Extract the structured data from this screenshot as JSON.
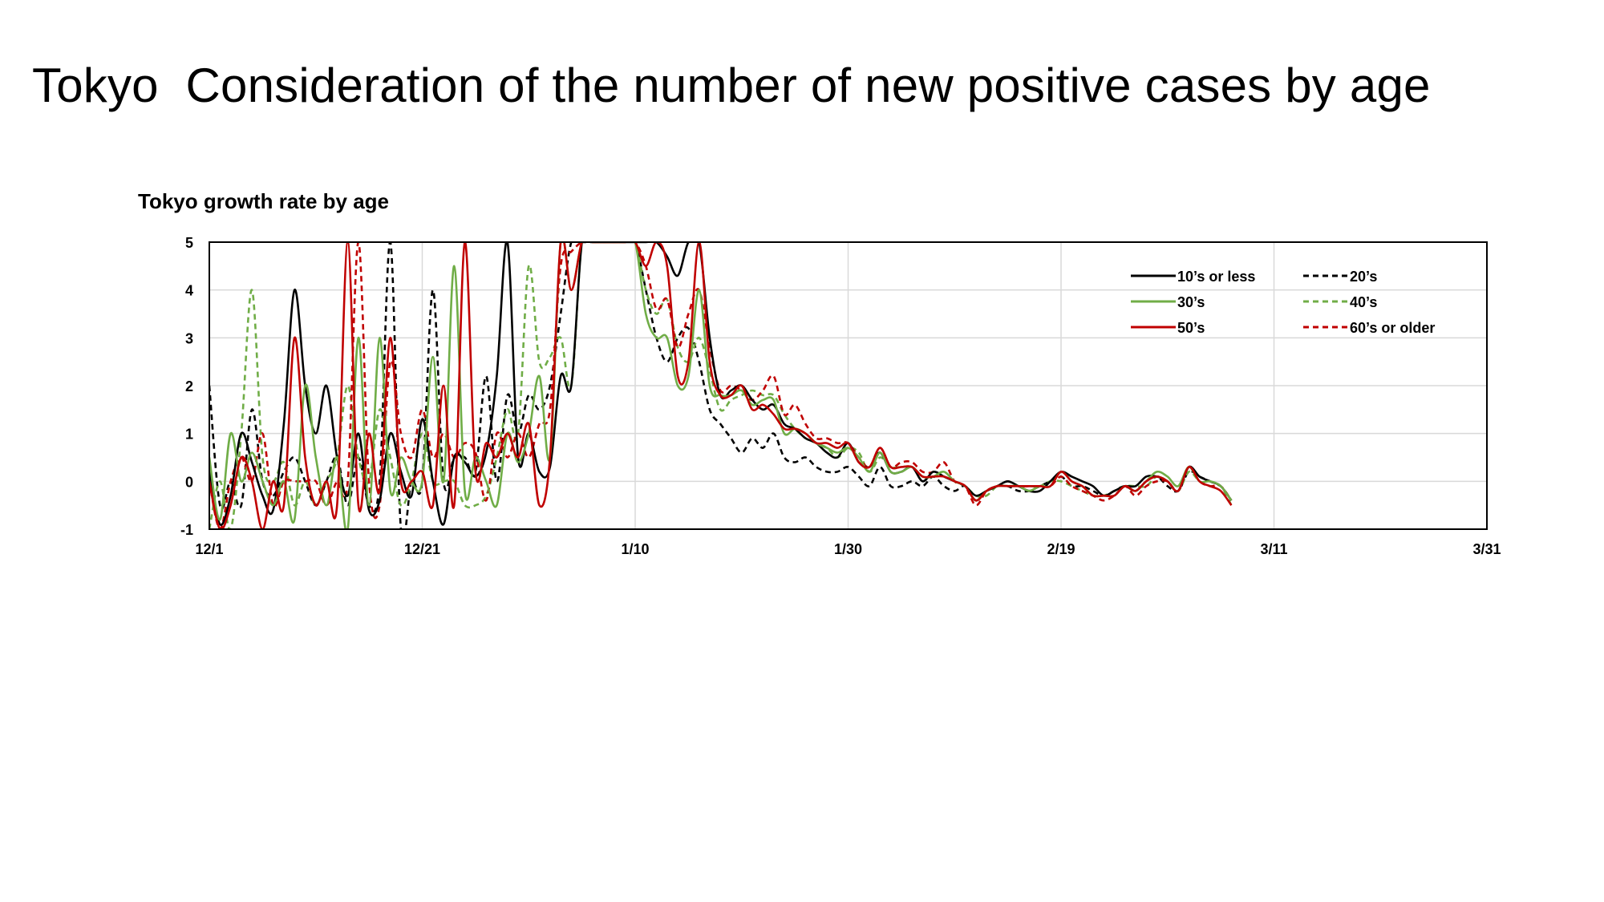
{
  "slide": {
    "title": "Tokyo  Consideration of the number of new positive cases by age"
  },
  "chart_data": {
    "type": "line",
    "title": "Tokyo growth rate by age",
    "xlabel": "",
    "ylabel": "",
    "ylim": [
      -1,
      5
    ],
    "yticks": [
      5,
      4,
      3,
      2,
      1,
      0,
      -1
    ],
    "xlim_days": [
      0,
      120
    ],
    "xticks": [
      {
        "day": 0,
        "label": "12/1"
      },
      {
        "day": 20,
        "label": "12/21"
      },
      {
        "day": 40,
        "label": "1/10"
      },
      {
        "day": 60,
        "label": "1/30"
      },
      {
        "day": 80,
        "label": "2/19"
      },
      {
        "day": 100,
        "label": "3/11"
      },
      {
        "day": 120,
        "label": "3/31"
      }
    ],
    "grid": true,
    "legend_position": "top-right",
    "series": [
      {
        "name": "10’s or less",
        "color": "#000000",
        "dash": "solid",
        "x": [
          0,
          1,
          2,
          3,
          4,
          5,
          6,
          7,
          8,
          9,
          10,
          11,
          12,
          13,
          14,
          15,
          16,
          17,
          18,
          19,
          20,
          21,
          22,
          23,
          24,
          25,
          26,
          27,
          28,
          29,
          30,
          31,
          32,
          33,
          34,
          35,
          36,
          37,
          38,
          39,
          40,
          41,
          42,
          43,
          44,
          45,
          46,
          47,
          48,
          49,
          50,
          51,
          52,
          53,
          54,
          55,
          56,
          57,
          58,
          59,
          60,
          61,
          62,
          63,
          64,
          65,
          66,
          67,
          68,
          69,
          70,
          71,
          72,
          73,
          74,
          75,
          76,
          77,
          78,
          79,
          80,
          81,
          82,
          83,
          84,
          85,
          86,
          87,
          88,
          89,
          90,
          91,
          92,
          93,
          94,
          95,
          96
        ],
        "y": [
          0.2,
          -0.9,
          -0.3,
          1.0,
          0.4,
          -0.3,
          -0.6,
          1.2,
          4.0,
          2.0,
          1.0,
          2.0,
          0.5,
          -0.3,
          1.0,
          -0.6,
          -0.4,
          1.0,
          0.2,
          -0.3,
          1.3,
          0.0,
          -0.9,
          0.5,
          0.4,
          0.1,
          0.6,
          2.2,
          5.0,
          0.5,
          1.0,
          0.2,
          0.3,
          2.2,
          2.0,
          5.0,
          5.0,
          5.0,
          5.0,
          5.0,
          5.0,
          5.0,
          5.0,
          4.7,
          4.3,
          5.0,
          5.0,
          3.0,
          1.8,
          1.9,
          2.0,
          1.7,
          1.5,
          1.6,
          1.2,
          1.1,
          0.9,
          0.8,
          0.6,
          0.5,
          0.8,
          0.4,
          0.3,
          0.6,
          0.2,
          0.2,
          0.3,
          0.0,
          0.2,
          0.1,
          0.0,
          -0.1,
          -0.3,
          -0.2,
          -0.1,
          0.0,
          -0.1,
          -0.2,
          -0.2,
          0.0,
          0.2,
          0.1,
          0.0,
          -0.1,
          -0.3,
          -0.2,
          -0.1,
          -0.1,
          0.1,
          0.1,
          0.0,
          -0.2,
          0.3,
          0.1,
          0.0,
          -0.1,
          -0.4
        ]
      },
      {
        "name": "20’s",
        "color": "#000000",
        "dash": "dashed",
        "x": [
          0,
          1,
          2,
          3,
          4,
          5,
          6,
          7,
          8,
          9,
          10,
          11,
          12,
          13,
          14,
          15,
          16,
          17,
          18,
          19,
          20,
          21,
          22,
          23,
          24,
          25,
          26,
          27,
          28,
          29,
          30,
          31,
          32,
          33,
          34,
          35,
          36,
          37,
          38,
          39,
          40,
          41,
          42,
          43,
          44,
          45,
          46,
          47,
          48,
          49,
          50,
          51,
          52,
          53,
          54,
          55,
          56,
          57,
          58,
          59,
          60,
          61,
          62,
          63,
          64,
          65,
          66,
          67,
          68,
          69,
          70,
          71,
          72,
          73,
          74,
          75,
          76,
          77,
          78,
          79,
          80,
          81,
          82,
          83,
          84,
          85,
          86,
          87,
          88,
          89,
          90,
          91,
          92,
          93,
          94,
          95,
          96
        ],
        "y": [
          2.0,
          -0.5,
          0.0,
          -0.5,
          1.5,
          0.0,
          -0.3,
          0.2,
          0.5,
          0.0,
          -0.5,
          0.0,
          0.5,
          -0.5,
          0.5,
          -0.5,
          0.0,
          5.0,
          -1.0,
          0.0,
          0.0,
          4.0,
          0.0,
          0.5,
          0.5,
          0.2,
          2.2,
          0.0,
          1.8,
          1.0,
          1.8,
          1.5,
          2.0,
          3.5,
          5.0,
          5.0,
          5.0,
          5.0,
          5.0,
          5.0,
          5.0,
          4.0,
          3.0,
          2.5,
          3.0,
          3.2,
          2.5,
          1.5,
          1.2,
          0.9,
          0.6,
          0.9,
          0.7,
          1.0,
          0.5,
          0.4,
          0.5,
          0.3,
          0.2,
          0.2,
          0.3,
          0.1,
          -0.1,
          0.3,
          -0.1,
          -0.1,
          0.0,
          -0.1,
          0.1,
          -0.1,
          -0.2,
          -0.1,
          -0.4,
          -0.2,
          -0.1,
          -0.1,
          -0.2,
          -0.2,
          -0.1,
          0.0,
          0.1,
          -0.1,
          -0.1,
          -0.2,
          -0.3,
          -0.2,
          -0.1,
          -0.2,
          0.0,
          0.1,
          -0.1,
          -0.2,
          0.2,
          0.1,
          0.0,
          -0.1,
          -0.4
        ]
      },
      {
        "name": "30’s",
        "color": "#70ad47",
        "dash": "solid",
        "x": [
          0,
          1,
          2,
          3,
          4,
          5,
          6,
          7,
          8,
          9,
          10,
          11,
          12,
          13,
          14,
          15,
          16,
          17,
          18,
          19,
          20,
          21,
          22,
          23,
          24,
          25,
          26,
          27,
          28,
          29,
          30,
          31,
          32,
          33,
          34,
          35,
          36,
          37,
          38,
          39,
          40,
          41,
          42,
          43,
          44,
          45,
          46,
          47,
          48,
          49,
          50,
          51,
          52,
          53,
          54,
          55,
          56,
          57,
          58,
          59,
          60,
          61,
          62,
          63,
          64,
          65,
          66,
          67,
          68,
          69,
          70,
          71,
          72,
          73,
          74,
          75,
          76,
          77,
          78,
          79,
          80,
          81,
          82,
          83,
          84,
          85,
          86,
          87,
          88,
          89,
          90,
          91,
          92,
          93,
          94,
          95,
          96
        ],
        "y": [
          0.5,
          -0.8,
          1.0,
          0.0,
          0.6,
          0.0,
          -0.5,
          0.0,
          -0.8,
          2.0,
          0.5,
          -0.5,
          0.5,
          -1.0,
          3.0,
          -0.5,
          3.0,
          -0.2,
          0.5,
          0.0,
          0.0,
          2.6,
          0.0,
          4.5,
          -0.2,
          0.5,
          0.0,
          -0.5,
          1.0,
          0.4,
          1.0,
          2.2,
          0.5,
          5.0,
          4.0,
          5.0,
          5.0,
          5.0,
          5.0,
          5.0,
          5.0,
          3.5,
          3.0,
          3.0,
          2.0,
          2.2,
          4.0,
          2.0,
          1.8,
          1.8,
          1.9,
          1.6,
          1.7,
          1.7,
          1.0,
          1.1,
          1.0,
          0.8,
          0.7,
          0.6,
          0.7,
          0.5,
          0.2,
          0.6,
          0.2,
          0.2,
          0.3,
          0.1,
          0.1,
          0.2,
          0.0,
          -0.1,
          -0.4,
          -0.2,
          -0.1,
          -0.1,
          -0.1,
          -0.2,
          -0.1,
          -0.1,
          0.2,
          0.0,
          -0.1,
          -0.3,
          -0.3,
          -0.3,
          -0.1,
          -0.2,
          0.0,
          0.2,
          0.1,
          -0.1,
          0.3,
          0.0,
          0.0,
          -0.1,
          -0.4
        ]
      },
      {
        "name": "40’s",
        "color": "#70ad47",
        "dash": "dashed",
        "x": [
          0,
          1,
          2,
          3,
          4,
          5,
          6,
          7,
          8,
          9,
          10,
          11,
          12,
          13,
          14,
          15,
          16,
          17,
          18,
          19,
          20,
          21,
          22,
          23,
          24,
          25,
          26,
          27,
          28,
          29,
          30,
          31,
          32,
          33,
          34,
          35,
          36,
          37,
          38,
          39,
          40,
          41,
          42,
          43,
          44,
          45,
          46,
          47,
          48,
          49,
          50,
          51,
          52,
          53,
          54,
          55,
          56,
          57,
          58,
          59,
          60,
          61,
          62,
          63,
          64,
          65,
          66,
          67,
          68,
          69,
          70,
          71,
          72,
          73,
          74,
          75,
          76,
          77,
          78,
          79,
          80,
          81,
          82,
          83,
          84,
          85,
          86,
          87,
          88,
          89,
          90,
          91,
          92,
          93,
          94,
          95,
          96
        ],
        "y": [
          -1.0,
          0.0,
          -1.0,
          1.0,
          4.0,
          0.5,
          0.0,
          0.4,
          -0.5,
          0.0,
          -0.5,
          0.0,
          0.5,
          2.0,
          0.5,
          0.0,
          1.5,
          0.5,
          -0.5,
          0.0,
          1.0,
          0.0,
          0.0,
          0.0,
          -0.5,
          -0.5,
          -0.3,
          0.5,
          1.5,
          1.0,
          4.5,
          2.5,
          2.6,
          3.0,
          2.0,
          5.0,
          5.0,
          5.0,
          5.0,
          5.0,
          5.0,
          4.0,
          3.5,
          3.8,
          2.8,
          2.5,
          3.0,
          2.3,
          1.5,
          1.7,
          1.8,
          1.9,
          1.8,
          1.8,
          1.4,
          1.1,
          0.9,
          0.8,
          0.7,
          0.5,
          0.7,
          0.6,
          0.2,
          0.5,
          0.3,
          0.3,
          0.3,
          0.1,
          0.1,
          0.2,
          0.0,
          -0.1,
          -0.3,
          -0.3,
          -0.1,
          -0.1,
          -0.1,
          -0.1,
          -0.1,
          0.0,
          0.0,
          -0.1,
          -0.2,
          -0.3,
          -0.3,
          -0.2,
          -0.1,
          -0.1,
          -0.1,
          0.1,
          0.0,
          -0.2,
          0.2,
          0.0,
          -0.1,
          -0.1,
          -0.5
        ]
      },
      {
        "name": "50’s",
        "color": "#c00000",
        "dash": "solid",
        "x": [
          0,
          1,
          2,
          3,
          4,
          5,
          6,
          7,
          8,
          9,
          10,
          11,
          12,
          13,
          14,
          15,
          16,
          17,
          18,
          19,
          20,
          21,
          22,
          23,
          24,
          25,
          26,
          27,
          28,
          29,
          30,
          31,
          32,
          33,
          34,
          35,
          36,
          37,
          38,
          39,
          40,
          41,
          42,
          43,
          44,
          45,
          46,
          47,
          48,
          49,
          50,
          51,
          52,
          53,
          54,
          55,
          56,
          57,
          58,
          59,
          60,
          61,
          62,
          63,
          64,
          65,
          66,
          67,
          68,
          69,
          70,
          71,
          72,
          73,
          74,
          75,
          76,
          77,
          78,
          79,
          80,
          81,
          82,
          83,
          84,
          85,
          86,
          87,
          88,
          89,
          90,
          91,
          92,
          93,
          94,
          95,
          96
        ],
        "y": [
          0.0,
          -1.0,
          -0.5,
          0.5,
          0.0,
          -1.0,
          0.0,
          -0.5,
          3.0,
          0.5,
          -0.5,
          0.0,
          -0.5,
          5.0,
          -0.5,
          1.0,
          -0.2,
          3.0,
          0.0,
          0.0,
          0.2,
          -0.5,
          2.0,
          -0.5,
          5.0,
          0.2,
          0.8,
          0.5,
          1.0,
          0.5,
          1.2,
          -0.5,
          0.5,
          5.0,
          4.0,
          5.0,
          5.0,
          5.0,
          5.0,
          5.0,
          5.0,
          4.5,
          5.0,
          4.5,
          2.2,
          2.5,
          5.0,
          2.5,
          1.8,
          1.8,
          2.0,
          1.5,
          1.6,
          1.4,
          1.1,
          1.1,
          1.0,
          0.8,
          0.8,
          0.7,
          0.8,
          0.4,
          0.3,
          0.7,
          0.3,
          0.3,
          0.3,
          0.1,
          0.1,
          0.1,
          0.0,
          -0.1,
          -0.4,
          -0.2,
          -0.1,
          -0.1,
          -0.1,
          -0.1,
          -0.1,
          -0.1,
          0.2,
          0.0,
          -0.1,
          -0.3,
          -0.3,
          -0.3,
          -0.1,
          -0.2,
          0.0,
          0.1,
          0.0,
          -0.2,
          0.3,
          0.0,
          -0.1,
          -0.2,
          -0.5
        ]
      },
      {
        "name": "60’s or older",
        "color": "#c00000",
        "dash": "dashed",
        "x": [
          0,
          1,
          2,
          3,
          4,
          5,
          6,
          7,
          8,
          9,
          10,
          11,
          12,
          13,
          14,
          15,
          16,
          17,
          18,
          19,
          20,
          21,
          22,
          23,
          24,
          25,
          26,
          27,
          28,
          29,
          30,
          31,
          32,
          33,
          34,
          35,
          36,
          37,
          38,
          39,
          40,
          41,
          42,
          43,
          44,
          45,
          46,
          47,
          48,
          49,
          50,
          51,
          52,
          53,
          54,
          55,
          56,
          57,
          58,
          59,
          60,
          61,
          62,
          63,
          64,
          65,
          66,
          67,
          68,
          69,
          70,
          71,
          72,
          73,
          74,
          75,
          76,
          77,
          78,
          79,
          80,
          81,
          82,
          83,
          84,
          85,
          86,
          87,
          88,
          89,
          90,
          91,
          92,
          93,
          94,
          95,
          96
        ],
        "y": [
          0.0,
          -1.0,
          0.0,
          0.5,
          0.0,
          1.0,
          -0.5,
          0.0,
          0.0,
          0.0,
          0.0,
          -0.5,
          0.0,
          0.0,
          5.0,
          0.0,
          -0.5,
          2.5,
          1.0,
          0.5,
          1.5,
          0.5,
          1.0,
          0.5,
          0.8,
          0.6,
          -0.4,
          1.0,
          0.5,
          1.0,
          0.5,
          1.2,
          1.5,
          4.5,
          4.8,
          5.0,
          5.0,
          5.0,
          5.0,
          5.0,
          5.0,
          4.5,
          3.6,
          3.8,
          2.8,
          3.5,
          4.0,
          2.8,
          1.9,
          2.0,
          1.9,
          1.7,
          1.9,
          2.2,
          1.4,
          1.6,
          1.2,
          0.9,
          0.9,
          0.8,
          0.8,
          0.5,
          0.3,
          0.7,
          0.3,
          0.4,
          0.4,
          0.2,
          0.2,
          0.4,
          0.0,
          -0.1,
          -0.5,
          -0.2,
          -0.1,
          0.0,
          -0.1,
          -0.1,
          -0.1,
          -0.1,
          0.1,
          -0.1,
          -0.2,
          -0.3,
          -0.4,
          -0.3,
          -0.1,
          -0.3,
          -0.1,
          0.0,
          0.0,
          -0.2,
          0.3,
          0.0,
          -0.1,
          -0.1,
          -0.4
        ]
      }
    ]
  }
}
